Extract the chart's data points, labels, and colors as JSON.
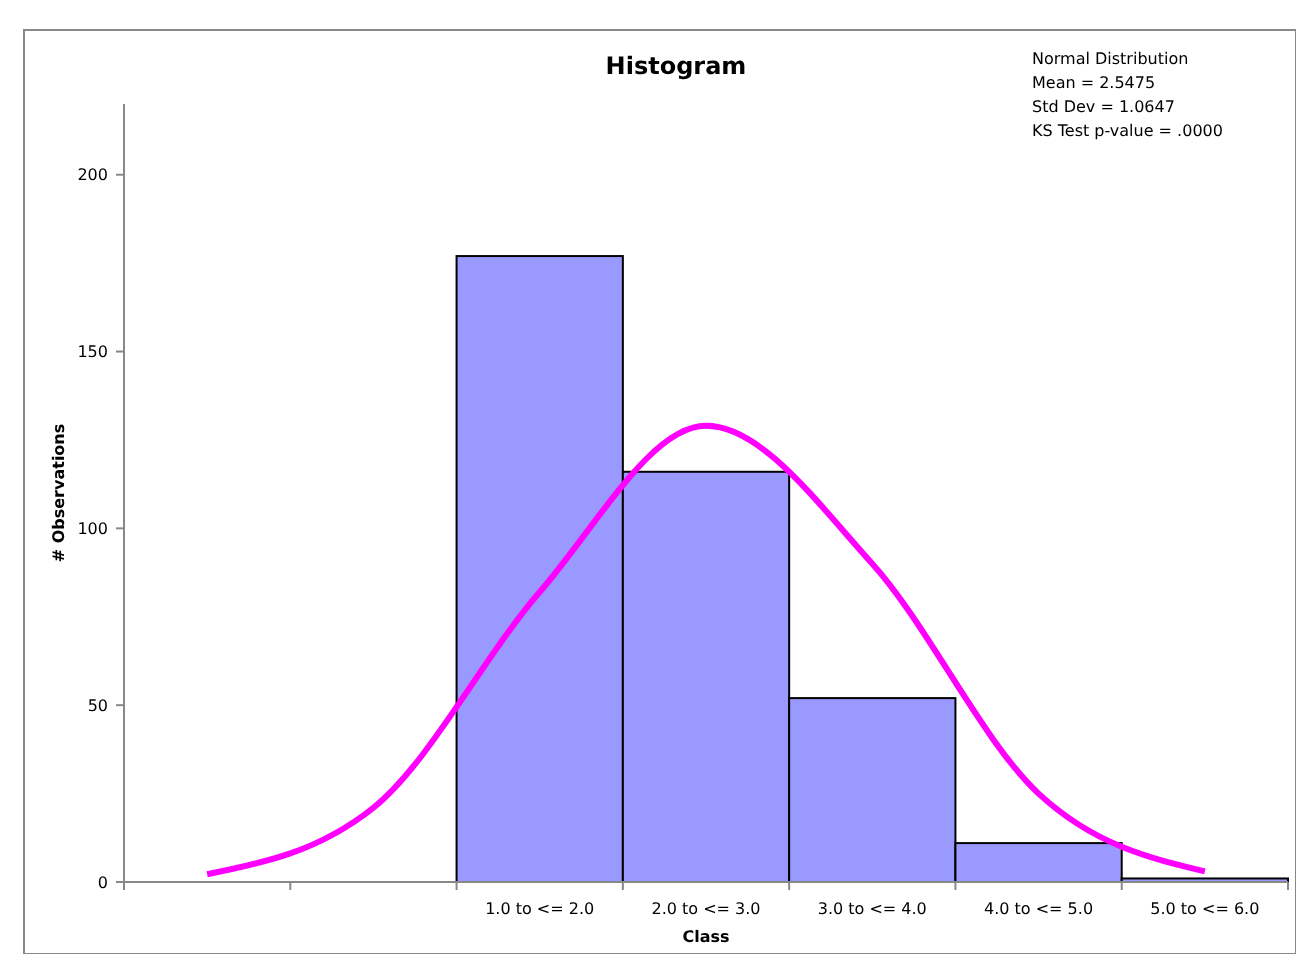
{
  "chart_data": {
    "type": "bar",
    "title": "Histogram",
    "xlabel": "Class",
    "ylabel": "# Observations",
    "annotations": [
      "Normal Distribution",
      "Mean = 2.5475",
      "Std Dev = 1.0647",
      "KS Test p-value = .0000"
    ],
    "categories": [
      null,
      null,
      "1.0 to <= 2.0",
      "2.0 to <= 3.0",
      "3.0 to <= 4.0",
      "4.0 to <= 5.0",
      "5.0 to <= 6.0"
    ],
    "series": [
      {
        "values": [
          null,
          null,
          177,
          116,
          52,
          11,
          1
        ],
        "color": "#9999ff"
      },
      {
        "type": "line",
        "values": [
          2.2,
          21,
          82,
          129,
          90,
          25,
          3
        ],
        "color": "#ff00ff"
      }
    ],
    "ylim": [
      0,
      220
    ],
    "yticks": [
      0,
      50,
      100,
      150,
      200
    ]
  }
}
